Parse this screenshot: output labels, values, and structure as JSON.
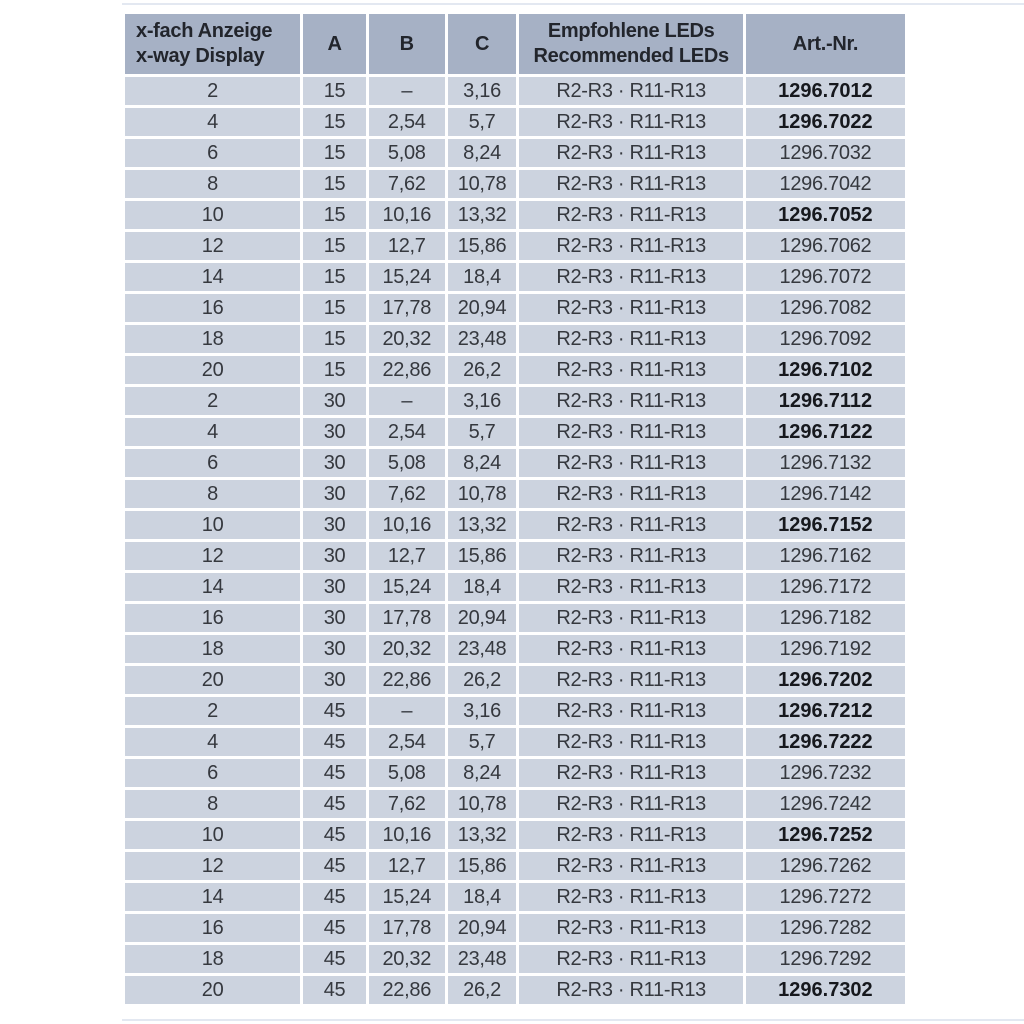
{
  "colors": {
    "page_background": "#ffffff",
    "header_background": "#a6b1c5",
    "row_background": "#ccd3df",
    "separator": "#ffffff",
    "header_text": "#22252c",
    "body_text": "#35383e",
    "bold_text": "#16181d"
  },
  "table": {
    "header": {
      "display_line1": "x-fach Anzeige",
      "display_line2": "x-way Display",
      "a": "A",
      "b": "B",
      "c": "C",
      "leds_line1": "Empfohlene LEDs",
      "leds_line2": "Recommended LEDs",
      "art": "Art.-Nr."
    },
    "rows": [
      {
        "display": "2",
        "a": "15",
        "b": "–",
        "c": "3,16",
        "leds": "R2-R3 · R11-R13",
        "art": "1296.7012",
        "art_bold": true
      },
      {
        "display": "4",
        "a": "15",
        "b": "2,54",
        "c": "5,7",
        "leds": "R2-R3 · R11-R13",
        "art": "1296.7022",
        "art_bold": true
      },
      {
        "display": "6",
        "a": "15",
        "b": "5,08",
        "c": "8,24",
        "leds": "R2-R3 · R11-R13",
        "art": "1296.7032",
        "art_bold": false
      },
      {
        "display": "8",
        "a": "15",
        "b": "7,62",
        "c": "10,78",
        "leds": "R2-R3 · R11-R13",
        "art": "1296.7042",
        "art_bold": false
      },
      {
        "display": "10",
        "a": "15",
        "b": "10,16",
        "c": "13,32",
        "leds": "R2-R3 · R11-R13",
        "art": "1296.7052",
        "art_bold": true
      },
      {
        "display": "12",
        "a": "15",
        "b": "12,7",
        "c": "15,86",
        "leds": "R2-R3 · R11-R13",
        "art": "1296.7062",
        "art_bold": false
      },
      {
        "display": "14",
        "a": "15",
        "b": "15,24",
        "c": "18,4",
        "leds": "R2-R3 · R11-R13",
        "art": "1296.7072",
        "art_bold": false
      },
      {
        "display": "16",
        "a": "15",
        "b": "17,78",
        "c": "20,94",
        "leds": "R2-R3 · R11-R13",
        "art": "1296.7082",
        "art_bold": false
      },
      {
        "display": "18",
        "a": "15",
        "b": "20,32",
        "c": "23,48",
        "leds": "R2-R3 · R11-R13",
        "art": "1296.7092",
        "art_bold": false
      },
      {
        "display": "20",
        "a": "15",
        "b": "22,86",
        "c": "26,2",
        "leds": "R2-R3 · R11-R13",
        "art": "1296.7102",
        "art_bold": true
      },
      {
        "display": "2",
        "a": "30",
        "b": "–",
        "c": "3,16",
        "leds": "R2-R3 · R11-R13",
        "art": "1296.7112",
        "art_bold": true
      },
      {
        "display": "4",
        "a": "30",
        "b": "2,54",
        "c": "5,7",
        "leds": "R2-R3 · R11-R13",
        "art": "1296.7122",
        "art_bold": true
      },
      {
        "display": "6",
        "a": "30",
        "b": "5,08",
        "c": "8,24",
        "leds": "R2-R3 · R11-R13",
        "art": "1296.7132",
        "art_bold": false
      },
      {
        "display": "8",
        "a": "30",
        "b": "7,62",
        "c": "10,78",
        "leds": "R2-R3 · R11-R13",
        "art": "1296.7142",
        "art_bold": false
      },
      {
        "display": "10",
        "a": "30",
        "b": "10,16",
        "c": "13,32",
        "leds": "R2-R3 · R11-R13",
        "art": "1296.7152",
        "art_bold": true
      },
      {
        "display": "12",
        "a": "30",
        "b": "12,7",
        "c": "15,86",
        "leds": "R2-R3 · R11-R13",
        "art": "1296.7162",
        "art_bold": false
      },
      {
        "display": "14",
        "a": "30",
        "b": "15,24",
        "c": "18,4",
        "leds": "R2-R3 · R11-R13",
        "art": "1296.7172",
        "art_bold": false
      },
      {
        "display": "16",
        "a": "30",
        "b": "17,78",
        "c": "20,94",
        "leds": "R2-R3 · R11-R13",
        "art": "1296.7182",
        "art_bold": false
      },
      {
        "display": "18",
        "a": "30",
        "b": "20,32",
        "c": "23,48",
        "leds": "R2-R3 · R11-R13",
        "art": "1296.7192",
        "art_bold": false
      },
      {
        "display": "20",
        "a": "30",
        "b": "22,86",
        "c": "26,2",
        "leds": "R2-R3 · R11-R13",
        "art": "1296.7202",
        "art_bold": true
      },
      {
        "display": "2",
        "a": "45",
        "b": "–",
        "c": "3,16",
        "leds": "R2-R3 · R11-R13",
        "art": "1296.7212",
        "art_bold": true
      },
      {
        "display": "4",
        "a": "45",
        "b": "2,54",
        "c": "5,7",
        "leds": "R2-R3 · R11-R13",
        "art": "1296.7222",
        "art_bold": true
      },
      {
        "display": "6",
        "a": "45",
        "b": "5,08",
        "c": "8,24",
        "leds": "R2-R3 · R11-R13",
        "art": "1296.7232",
        "art_bold": false
      },
      {
        "display": "8",
        "a": "45",
        "b": "7,62",
        "c": "10,78",
        "leds": "R2-R3 · R11-R13",
        "art": "1296.7242",
        "art_bold": false
      },
      {
        "display": "10",
        "a": "45",
        "b": "10,16",
        "c": "13,32",
        "leds": "R2-R3 · R11-R13",
        "art": "1296.7252",
        "art_bold": true
      },
      {
        "display": "12",
        "a": "45",
        "b": "12,7",
        "c": "15,86",
        "leds": "R2-R3 · R11-R13",
        "art": "1296.7262",
        "art_bold": false
      },
      {
        "display": "14",
        "a": "45",
        "b": "15,24",
        "c": "18,4",
        "leds": "R2-R3 · R11-R13",
        "art": "1296.7272",
        "art_bold": false
      },
      {
        "display": "16",
        "a": "45",
        "b": "17,78",
        "c": "20,94",
        "leds": "R2-R3 · R11-R13",
        "art": "1296.7282",
        "art_bold": false
      },
      {
        "display": "18",
        "a": "45",
        "b": "20,32",
        "c": "23,48",
        "leds": "R2-R3 · R11-R13",
        "art": "1296.7292",
        "art_bold": false
      },
      {
        "display": "20",
        "a": "45",
        "b": "22,86",
        "c": "26,2",
        "leds": "R2-R3 · R11-R13",
        "art": "1296.7302",
        "art_bold": true
      }
    ]
  }
}
